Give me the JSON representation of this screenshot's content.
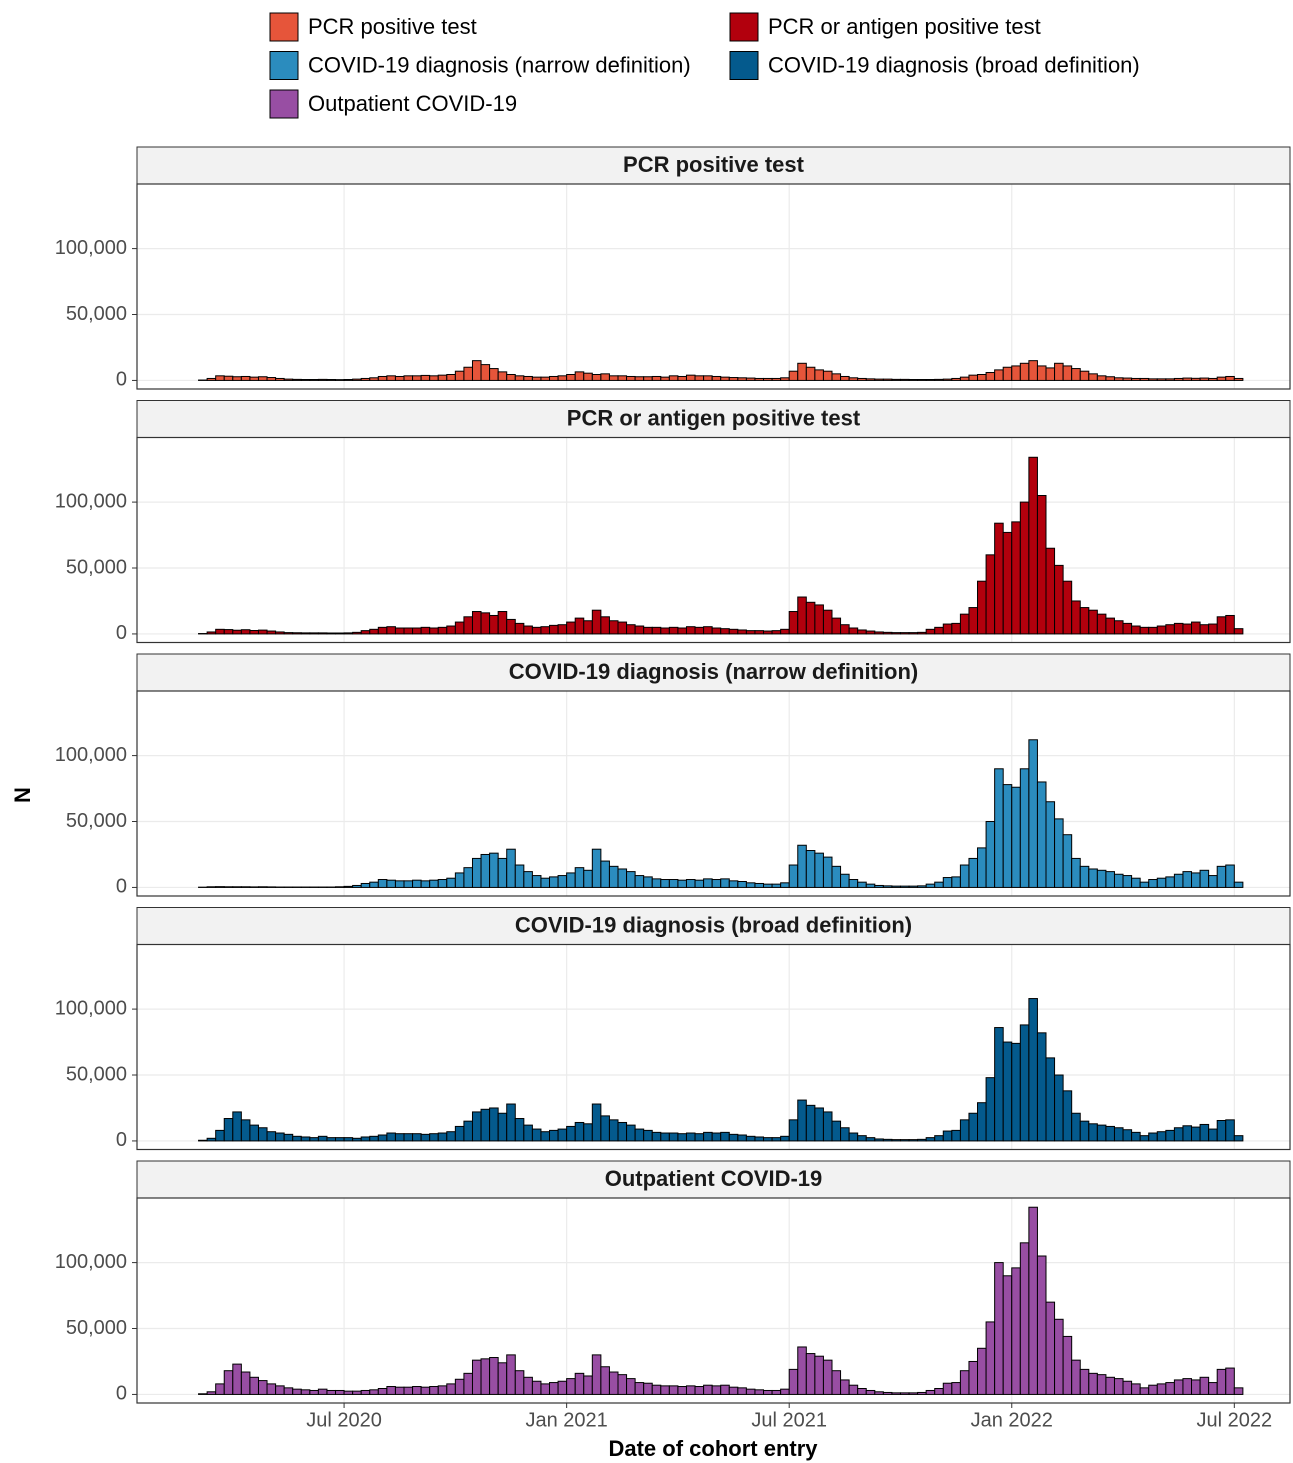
{
  "chart_data": {
    "type": "bar",
    "x_label": "Date of cohort entry",
    "y_label": "N",
    "grid": true,
    "ylim": [
      -6500,
      149000
    ],
    "yticks": [
      0,
      {
        "value": 50000,
        "label": "50,000"
      },
      {
        "value": 100000,
        "label": "100,000"
      }
    ],
    "categories": [
      null,
      null,
      null,
      null,
      null,
      null,
      null,
      null,
      null,
      null,
      null,
      null,
      null,
      null,
      null,
      null,
      null,
      null,
      "Jul 2020",
      null,
      null,
      null,
      null,
      null,
      null,
      null,
      null,
      null,
      null,
      null,
      null,
      null,
      null,
      null,
      null,
      null,
      null,
      null,
      null,
      null,
      null,
      null,
      null,
      null,
      "Jan 2021",
      null,
      null,
      null,
      null,
      null,
      null,
      null,
      null,
      null,
      null,
      null,
      null,
      null,
      null,
      null,
      null,
      null,
      null,
      null,
      null,
      null,
      null,
      null,
      null,
      null,
      "Jul 2021",
      null,
      null,
      null,
      null,
      null,
      null,
      null,
      null,
      null,
      null,
      null,
      null,
      null,
      null,
      null,
      null,
      null,
      null,
      null,
      null,
      null,
      null,
      null,
      null,
      null,
      "Jan 2022",
      null,
      null,
      null,
      null,
      null,
      null,
      null,
      null,
      null,
      null,
      null,
      null,
      null,
      null,
      null,
      null,
      null,
      null,
      null,
      null,
      null,
      null,
      null,
      null,
      null,
      "Jul 2022"
    ],
    "series": [
      {
        "name": "PCR positive test",
        "color": "#e6553a",
        "values": [
          0,
          300,
          1500,
          3500,
          3200,
          2800,
          3000,
          2500,
          2800,
          2200,
          1500,
          1000,
          800,
          700,
          700,
          800,
          700,
          600,
          700,
          1000,
          1500,
          2000,
          3000,
          3500,
          3000,
          3500,
          3500,
          3800,
          3500,
          4000,
          4500,
          7000,
          10000,
          15000,
          12000,
          9000,
          6500,
          4500,
          3500,
          3000,
          2500,
          2500,
          3000,
          3500,
          4500,
          6500,
          5500,
          4500,
          5000,
          3500,
          3500,
          3000,
          2800,
          2800,
          3000,
          2500,
          3500,
          3000,
          4000,
          3500,
          3500,
          3000,
          2500,
          2200,
          2000,
          1800,
          1500,
          1500,
          1500,
          2000,
          7000,
          13000,
          10000,
          8000,
          7000,
          5000,
          3000,
          2000,
          1500,
          1200,
          1000,
          1000,
          800,
          800,
          700,
          700,
          700,
          800,
          1000,
          1500,
          2500,
          4000,
          4500,
          6000,
          8000,
          10000,
          11000,
          13000,
          15000,
          11000,
          9500,
          13000,
          11000,
          9000,
          7000,
          5000,
          3500,
          2800,
          2000,
          1800,
          1500,
          1500,
          1200,
          1200,
          1200,
          1500,
          1800,
          1600,
          1800,
          1500,
          2500,
          3000,
          1500
        ]
      },
      {
        "name": "PCR or antigen positive test",
        "color": "#b2000d",
        "values": [
          0,
          300,
          1500,
          3500,
          3300,
          2800,
          3200,
          2600,
          2900,
          2200,
          1500,
          1000,
          900,
          800,
          800,
          800,
          700,
          700,
          800,
          1200,
          2500,
          3500,
          5000,
          5500,
          4500,
          4500,
          4500,
          5000,
          4500,
          5000,
          6000,
          9000,
          13000,
          17000,
          16000,
          14000,
          17000,
          11000,
          8000,
          6000,
          5000,
          5500,
          6500,
          7000,
          9000,
          12000,
          10000,
          18000,
          13000,
          10000,
          9000,
          7000,
          6000,
          5000,
          5000,
          4500,
          5000,
          4500,
          5500,
          5000,
          5500,
          4500,
          4000,
          3500,
          3000,
          2500,
          2500,
          2200,
          2500,
          3500,
          17000,
          28000,
          24000,
          22000,
          18000,
          12000,
          7000,
          4500,
          3000,
          2200,
          1500,
          1200,
          1000,
          1000,
          1000,
          1200,
          3500,
          5000,
          7500,
          8000,
          15000,
          20000,
          40000,
          60000,
          84000,
          77000,
          85000,
          100000,
          134000,
          105000,
          65000,
          52000,
          40000,
          25000,
          20000,
          18000,
          15000,
          12000,
          10000,
          8000,
          6000,
          5000,
          5000,
          6000,
          7000,
          8000,
          7500,
          9000,
          7000,
          7500,
          13000,
          14000,
          4000
        ]
      },
      {
        "name": "COVID-19 diagnosis (narrow definition)",
        "color": "#2b8cbe",
        "values": [
          0,
          200,
          500,
          600,
          500,
          500,
          500,
          400,
          500,
          400,
          300,
          300,
          300,
          300,
          300,
          300,
          300,
          500,
          800,
          1500,
          3000,
          4000,
          6000,
          5500,
          5000,
          5000,
          5500,
          5000,
          5500,
          6000,
          7000,
          11000,
          15000,
          22000,
          25000,
          26000,
          22000,
          29000,
          17000,
          12000,
          9000,
          7000,
          8000,
          9000,
          11000,
          15000,
          13000,
          29000,
          20000,
          16000,
          14000,
          12000,
          9000,
          8000,
          6500,
          6000,
          6000,
          5500,
          6000,
          5500,
          6500,
          6000,
          6500,
          5000,
          4500,
          3500,
          3000,
          2500,
          2500,
          3500,
          17000,
          32000,
          28000,
          26000,
          23000,
          16000,
          10000,
          6000,
          4000,
          2500,
          1500,
          1200,
          1000,
          1000,
          1000,
          1200,
          2500,
          4000,
          7500,
          8000,
          17000,
          22000,
          30000,
          50000,
          90000,
          78000,
          76000,
          90000,
          112000,
          80000,
          65000,
          52000,
          40000,
          22000,
          16000,
          14000,
          13000,
          12000,
          10000,
          9000,
          7000,
          4000,
          6000,
          7000,
          8000,
          10000,
          12000,
          11000,
          13000,
          9000,
          16000,
          17000,
          4000
        ]
      },
      {
        "name": "COVID-19 diagnosis (broad definition)",
        "color": "#045a8d",
        "values": [
          0,
          500,
          2000,
          8000,
          17000,
          22000,
          16000,
          12000,
          10000,
          7000,
          6000,
          5000,
          3500,
          3000,
          2500,
          3500,
          2500,
          2500,
          2500,
          2000,
          3000,
          3500,
          4500,
          6000,
          5500,
          5500,
          5500,
          5000,
          5500,
          6000,
          7000,
          11000,
          15000,
          22000,
          24000,
          25000,
          21000,
          28000,
          17000,
          12000,
          9000,
          7000,
          8000,
          9000,
          11000,
          14000,
          13000,
          28000,
          19000,
          16000,
          14000,
          12000,
          9000,
          8000,
          6500,
          6000,
          6000,
          5500,
          6000,
          5500,
          6500,
          6000,
          6500,
          5000,
          4500,
          3500,
          3000,
          2500,
          2500,
          3500,
          16000,
          31000,
          27000,
          25000,
          22000,
          15000,
          10000,
          6000,
          4000,
          2500,
          1500,
          1200,
          1000,
          1000,
          1000,
          1200,
          2500,
          4000,
          7500,
          8000,
          16000,
          21000,
          29000,
          48000,
          86000,
          75000,
          74000,
          88000,
          108000,
          82000,
          63000,
          50000,
          38000,
          21000,
          15000,
          13000,
          12000,
          11000,
          10000,
          8500,
          6500,
          4000,
          6000,
          7000,
          8000,
          10000,
          11500,
          10500,
          12500,
          9000,
          15500,
          16000,
          4000
        ]
      },
      {
        "name": "Outpatient COVID-19",
        "color": "#984ea3",
        "values": [
          0,
          500,
          2000,
          8000,
          18000,
          23000,
          17000,
          13000,
          10500,
          8000,
          6500,
          5000,
          4000,
          3500,
          3000,
          4000,
          3000,
          3000,
          2500,
          2500,
          3000,
          3500,
          4500,
          6000,
          5500,
          5500,
          6000,
          5500,
          6000,
          6500,
          8000,
          11500,
          16000,
          26000,
          27000,
          28000,
          24000,
          30000,
          18000,
          13000,
          10000,
          8000,
          9000,
          10000,
          12000,
          16000,
          14000,
          30000,
          21000,
          17000,
          15000,
          12000,
          9000,
          8500,
          7000,
          6500,
          6500,
          6000,
          6500,
          6000,
          7000,
          6500,
          7000,
          5500,
          5000,
          4000,
          3500,
          3000,
          3000,
          4000,
          19000,
          36000,
          31000,
          29000,
          26000,
          18000,
          11000,
          7000,
          4500,
          3000,
          2000,
          1500,
          1200,
          1200,
          1200,
          1500,
          3000,
          4500,
          8500,
          9000,
          18000,
          25000,
          35000,
          55000,
          100000,
          90000,
          96000,
          115000,
          142000,
          105000,
          70000,
          57000,
          44000,
          26000,
          19000,
          16000,
          15000,
          13000,
          12000,
          10000,
          8000,
          5000,
          7000,
          8000,
          9000,
          11000,
          12000,
          11000,
          13000,
          9000,
          19000,
          20000,
          5000
        ]
      }
    ]
  }
}
